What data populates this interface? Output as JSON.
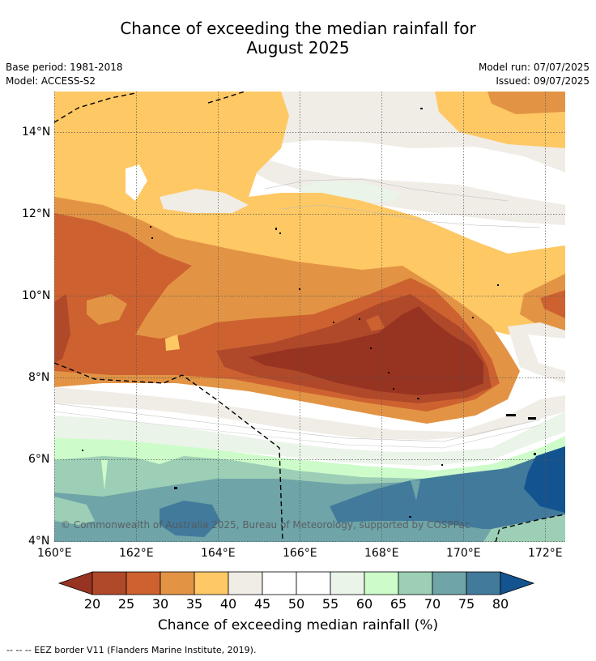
{
  "header": {
    "title_line1": "Chance of exceeding the median rainfall for",
    "title_line2": "August 2025",
    "base_period": "Base period: 1981-2018",
    "model": "Model: ACCESS-S2",
    "model_run": "Model run: 07/07/2025",
    "issued": "Issued: 09/07/2025"
  },
  "map": {
    "x_ticks": [
      "160°E",
      "162°E",
      "164°E",
      "166°E",
      "168°E",
      "170°E",
      "172°E"
    ],
    "y_ticks": [
      "14°N",
      "12°N",
      "10°N",
      "8°N",
      "6°N",
      "4°N"
    ],
    "credit": "© Commonwealth of Australia 2025, Bureau of Meteorology, supported by COSPPac",
    "lon_range": [
      160,
      172.5
    ],
    "lat_range": [
      4,
      15
    ]
  },
  "legend": {
    "title": "Chance of exceeding median rainfall (%)",
    "levels": [
      "20",
      "25",
      "30",
      "35",
      "40",
      "45",
      "50",
      "55",
      "60",
      "65",
      "70",
      "75",
      "80"
    ],
    "colors": [
      "#b0492a",
      "#cd6230",
      "#e29444",
      "#fec864",
      "#f0ece6",
      "#ffffff",
      "#ffffff",
      "#eaf4e8",
      "#cdfcca",
      "#9ccfb5",
      "#6fa4a8",
      "#427a9c"
    ],
    "low_extend_color": "#973321",
    "high_extend_color": "#13538f"
  },
  "footnote": "-- -- -- EEZ border V11 (Flanders Marine Institute, 2019)."
}
